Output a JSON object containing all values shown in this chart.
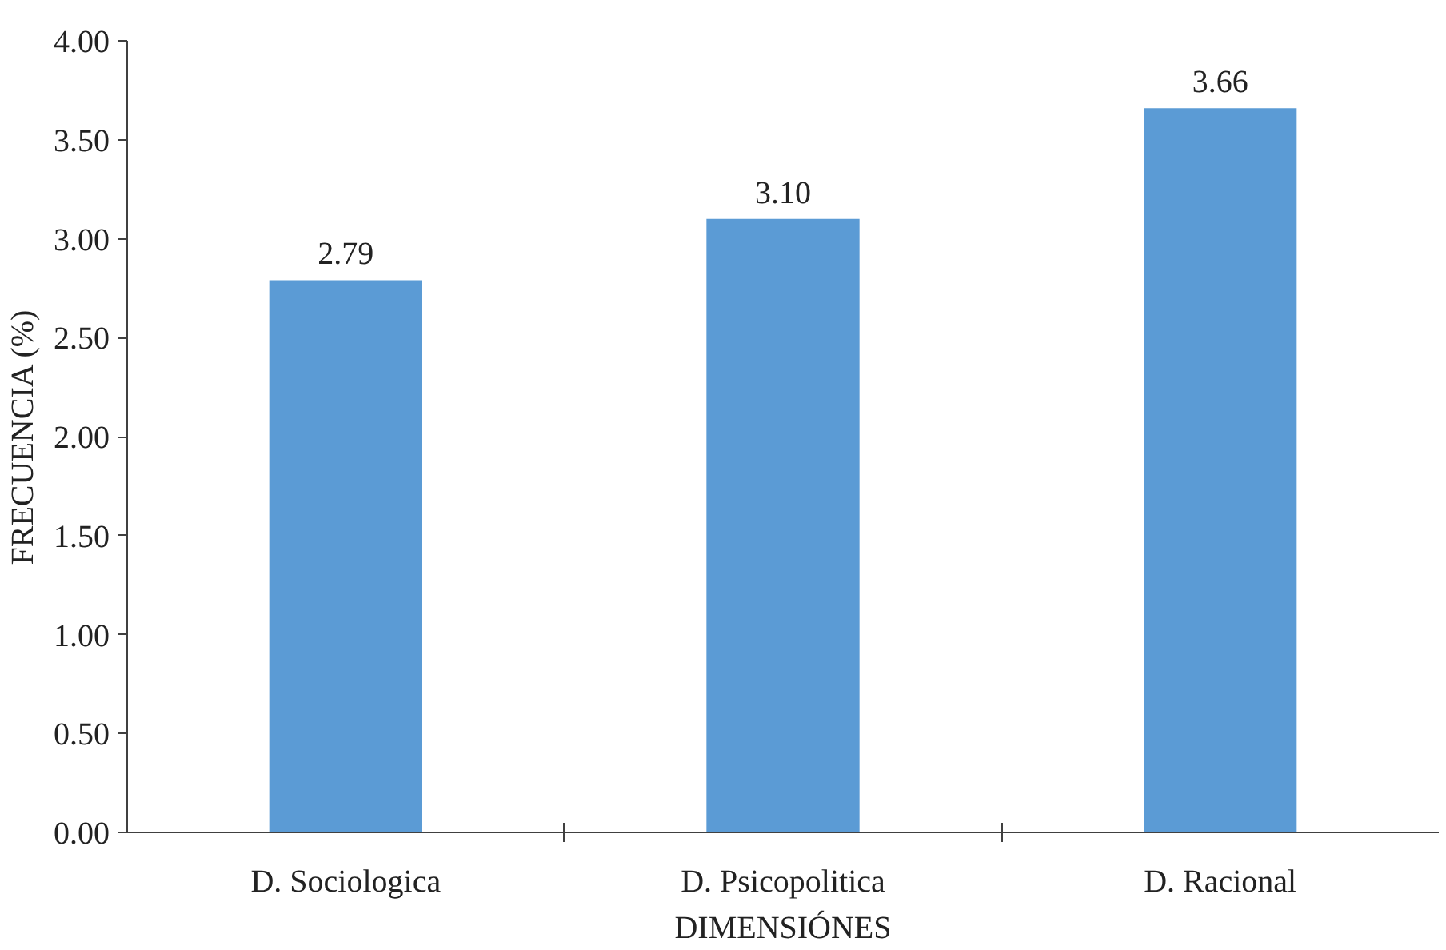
{
  "chart_data": {
    "type": "bar",
    "xlabel": "DIMENSIÓNES",
    "ylabel": "FRECUENCIA (%)",
    "categories": [
      "D. Sociologica",
      "D. Psicopolitica",
      "D. Racional"
    ],
    "values": [
      2.79,
      3.1,
      3.66
    ],
    "color": "#5b9bd5",
    "ylim": [
      0,
      4
    ],
    "yticks": [
      {
        "value": 0,
        "label": "0.00"
      },
      {
        "value": 0.5,
        "label": "0.50"
      },
      {
        "value": 1,
        "label": "1.00"
      },
      {
        "value": 1.5,
        "label": "1.50"
      },
      {
        "value": 2,
        "label": "2.00"
      },
      {
        "value": 2.5,
        "label": "2.50"
      },
      {
        "value": 3,
        "label": "3.00"
      },
      {
        "value": 3.5,
        "label": "3.50"
      },
      {
        "value": 4,
        "label": "4.00"
      }
    ],
    "value_labels": [
      "2.79",
      "3.10",
      "3.66"
    ],
    "grid": false
  }
}
